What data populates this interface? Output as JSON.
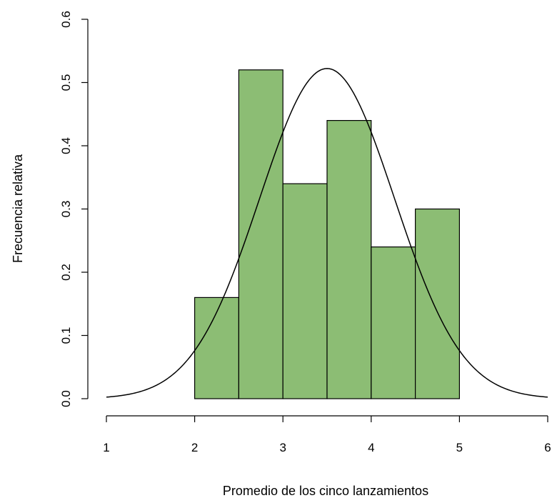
{
  "chart_data": {
    "type": "bar",
    "subtype": "histogram-with-density-curve",
    "title": "",
    "xlabel": "Promedio de los cinco lanzamientos",
    "ylabel": "Frecuencia relativa",
    "xlim": [
      1,
      6
    ],
    "ylim": [
      0,
      0.6
    ],
    "x_ticks": [
      1,
      2,
      3,
      4,
      5,
      6
    ],
    "y_ticks": [
      0.0,
      0.1,
      0.2,
      0.3,
      0.4,
      0.5,
      0.6
    ],
    "x_tick_labels": [
      "1",
      "2",
      "3",
      "4",
      "5",
      "6"
    ],
    "y_tick_labels": [
      "0.0",
      "0.1",
      "0.2",
      "0.3",
      "0.4",
      "0.5",
      "0.6"
    ],
    "bins": [
      {
        "from": 2.0,
        "to": 2.5,
        "value": 0.16
      },
      {
        "from": 2.5,
        "to": 3.0,
        "value": 0.52
      },
      {
        "from": 3.0,
        "to": 3.5,
        "value": 0.34
      },
      {
        "from": 3.5,
        "to": 4.0,
        "value": 0.44
      },
      {
        "from": 4.0,
        "to": 4.5,
        "value": 0.24
      },
      {
        "from": 4.5,
        "to": 5.0,
        "value": 0.3
      }
    ],
    "density_curve": {
      "distribution": "normal",
      "mean": 3.5,
      "sd": 0.764,
      "x_range": [
        1,
        6
      ]
    },
    "bar_color": "#8cbd74",
    "bar_border_color": "#000000",
    "grid": false,
    "legend": "none"
  }
}
